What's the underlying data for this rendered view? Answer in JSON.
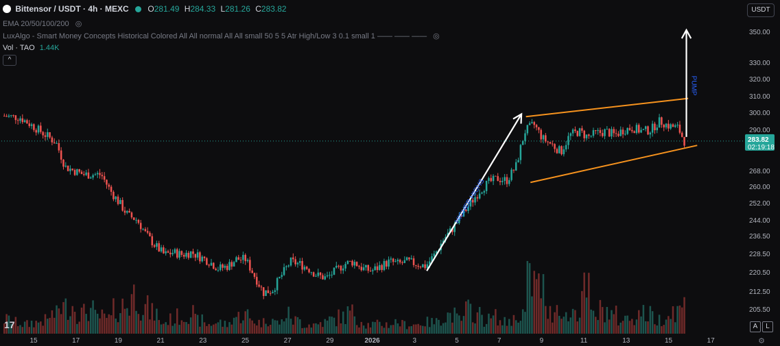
{
  "header": {
    "symbol_title": "Bittensor / USDT · 4h · MEXC",
    "ohlc": {
      "o_label": "O",
      "o": "281.49",
      "h_label": "H",
      "h": "284.33",
      "l_label": "L",
      "l": "281.26",
      "c_label": "C",
      "c": "283.82"
    },
    "ema_label": "EMA 20/50/100/200",
    "luxalgo_label": "LuxAlgo - Smart Money Concepts Historical Colored All All normal All All small 50 5 5 Atr High/Low 3 0.1 small 1 —— —— ——",
    "vol_label": "Vol · TAO",
    "vol_value": "1.44K",
    "collapse_icon": "chevron-up-icon",
    "currency_button": "USDT"
  },
  "footer": {
    "logo": "17",
    "auto_button": "A",
    "log_button": "L",
    "settings_icon": "gear-icon"
  },
  "colors": {
    "background": "#0d0d0f",
    "up": "#26a69a",
    "down": "#ef5350",
    "trendline": "#f7931e",
    "arrow": "#ffffff",
    "pump_text": "#2962ff",
    "price_tag": "#26a69a"
  },
  "chart_data": {
    "type": "candlestick",
    "title": "Bittensor / USDT · 4h · MEXC",
    "x_ticks": [
      "15",
      "17",
      "19",
      "21",
      "23",
      "25",
      "27",
      "29",
      "2026",
      "3",
      "5",
      "7",
      "9",
      "11",
      "13",
      "15",
      "17"
    ],
    "y_ticks": [
      205.5,
      212.5,
      220.5,
      228.5,
      236.5,
      244.0,
      252.0,
      260.0,
      268.0,
      290.0,
      300.0,
      310.0,
      320.0,
      330.0,
      350.0
    ],
    "y_tick_labels": [
      "205.50",
      "212.50",
      "220.50",
      "228.50",
      "236.50",
      "244.00",
      "252.00",
      "260.00",
      "268.00",
      "290.00",
      "300.00",
      "310.00",
      "320.00",
      "330.00",
      "350.00"
    ],
    "last_price": "283.82",
    "countdown": "02:19:18",
    "price_path": [
      [
        0,
        298
      ],
      [
        2,
        297
      ],
      [
        4,
        290
      ],
      [
        6,
        283
      ],
      [
        7,
        270
      ],
      [
        9,
        266
      ],
      [
        11,
        266
      ],
      [
        12,
        258
      ],
      [
        14,
        246
      ],
      [
        15,
        244
      ],
      [
        16,
        237
      ],
      [
        17,
        232
      ],
      [
        18,
        228
      ],
      [
        19,
        229
      ],
      [
        20,
        228
      ],
      [
        21,
        229
      ],
      [
        22,
        227
      ],
      [
        23,
        225
      ],
      [
        24,
        222
      ],
      [
        25,
        223
      ],
      [
        26,
        226
      ],
      [
        27,
        226
      ],
      [
        28,
        219
      ],
      [
        29,
        212
      ],
      [
        30,
        213
      ],
      [
        31,
        219
      ],
      [
        32,
        225
      ],
      [
        33,
        224
      ],
      [
        34,
        222
      ],
      [
        35,
        219
      ],
      [
        36,
        218
      ],
      [
        37,
        221
      ],
      [
        38,
        224
      ],
      [
        39,
        225
      ],
      [
        40,
        222
      ],
      [
        41,
        221
      ],
      [
        42,
        223
      ],
      [
        43,
        225
      ],
      [
        44,
        224
      ],
      [
        45,
        225
      ],
      [
        46,
        224
      ],
      [
        47,
        223
      ],
      [
        48,
        228
      ],
      [
        49,
        235
      ],
      [
        50,
        240
      ],
      [
        51,
        246
      ],
      [
        52,
        252
      ],
      [
        53,
        258
      ],
      [
        54,
        262
      ],
      [
        55,
        264
      ],
      [
        56,
        263
      ],
      [
        57,
        270
      ],
      [
        58,
        289
      ],
      [
        59,
        293
      ],
      [
        60,
        285
      ],
      [
        61,
        282
      ],
      [
        62,
        278
      ],
      [
        63,
        287
      ],
      [
        64,
        289
      ],
      [
        65,
        286
      ],
      [
        66,
        288
      ],
      [
        67,
        289
      ],
      [
        68,
        287
      ],
      [
        69,
        290
      ],
      [
        70,
        291
      ],
      [
        71,
        289
      ],
      [
        72,
        290
      ],
      [
        73,
        295
      ],
      [
        74,
        292
      ],
      [
        75,
        291
      ],
      [
        75.7,
        283.82
      ]
    ],
    "volume_profile": [
      0.15,
      0.12,
      0.1,
      0.12,
      0.14,
      0.2,
      0.28,
      0.3,
      0.22,
      0.25,
      0.18,
      0.16,
      0.25,
      0.3,
      0.42,
      0.28,
      0.22,
      0.12,
      0.15,
      0.18,
      0.22,
      0.14,
      0.1,
      0.12,
      0.1,
      0.18,
      0.2,
      0.15,
      0.12,
      0.16,
      0.12,
      0.2,
      0.14,
      0.1,
      0.1,
      0.12,
      0.15,
      0.18,
      0.22,
      0.14,
      0.1,
      0.1,
      0.1,
      0.12,
      0.1,
      0.1,
      0.12,
      0.12,
      0.18,
      0.2,
      0.15,
      0.25,
      0.2,
      0.15,
      0.18,
      0.12,
      0.15,
      0.22,
      0.55,
      0.5,
      0.22,
      0.3,
      0.18,
      0.25,
      0.45,
      0.2,
      0.25,
      0.2,
      0.15,
      0.18,
      0.22,
      0.2,
      0.15,
      0.2,
      0.25,
      0.3,
      0.15
    ],
    "annotations": {
      "higher_highs_label": "HIGHER HIGHS",
      "pump_label": "PUMP",
      "higher_highs_arrow": {
        "from": [
          47,
          221
        ],
        "to": [
          57.5,
          299
        ]
      },
      "pump_arrow": {
        "from": [
          75.8,
          286
        ],
        "to": [
          75.8,
          351
        ]
      },
      "channel_upper": {
        "from": [
          58,
          297.5
        ],
        "to": [
          76,
          308.5
        ]
      },
      "channel_lower": {
        "from": [
          58.5,
          262
        ],
        "to": [
          77,
          281.5
        ]
      }
    },
    "xlim": [
      -0.2,
      82
    ],
    "ylim": [
      199,
      360
    ],
    "grid": false
  }
}
